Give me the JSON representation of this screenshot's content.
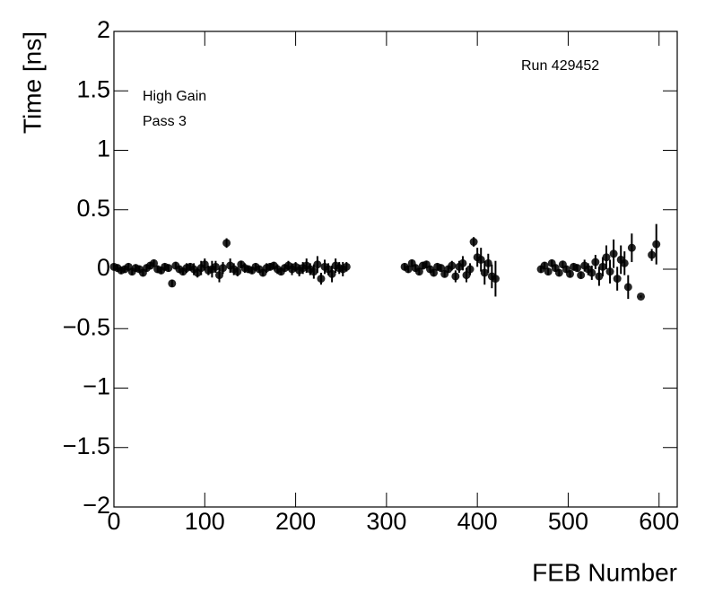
{
  "chart_data": {
    "type": "scatter",
    "xlabel": "FEB Number",
    "ylabel": "Time [ns]",
    "annotations": [
      "High Gain",
      "Pass 3",
      "Run 429452"
    ],
    "xlim": [
      0,
      620
    ],
    "ylim": [
      -2,
      2
    ],
    "xticks": [
      0,
      100,
      200,
      300,
      400,
      500,
      600
    ],
    "yticks": [
      {
        "value": -2,
        "label": "−2"
      },
      {
        "value": -1.5,
        "label": "−1.5"
      },
      {
        "value": -1,
        "label": "−1"
      },
      {
        "value": -0.5,
        "label": "−0.5"
      },
      0,
      0.5,
      1,
      1.5,
      2
    ],
    "series": [
      {
        "color": "#000000",
        "x": [
          0,
          4,
          8,
          12,
          16,
          20,
          24,
          28,
          32,
          36,
          40,
          44,
          48,
          52,
          56,
          60,
          64,
          68,
          72,
          76,
          80,
          84,
          88,
          92,
          96,
          100,
          104,
          108,
          112,
          116,
          120,
          124,
          128,
          132,
          136,
          140,
          144,
          148,
          152,
          156,
          160,
          164,
          168,
          172,
          176,
          180,
          184,
          188,
          192,
          196,
          200,
          204,
          208,
          212,
          216,
          220,
          224,
          228,
          232,
          236,
          240,
          244,
          248,
          252,
          256,
          320,
          324,
          328,
          332,
          336,
          340,
          344,
          348,
          352,
          356,
          360,
          364,
          368,
          372,
          376,
          380,
          384,
          388,
          392,
          396,
          400,
          404,
          408,
          412,
          416,
          420,
          470,
          474,
          478,
          482,
          486,
          490,
          494,
          498,
          502,
          506,
          510,
          514,
          518,
          522,
          526,
          530,
          534,
          538,
          542,
          546,
          550,
          554,
          558,
          562,
          566,
          570,
          580,
          592,
          597
        ],
        "values": [
          0.02,
          0.01,
          -0.01,
          0.0,
          0.02,
          -0.02,
          0.01,
          0.0,
          -0.03,
          0.01,
          0.03,
          0.05,
          0.0,
          -0.01,
          0.02,
          0.01,
          -0.12,
          0.03,
          0.0,
          -0.02,
          0.01,
          0.02,
          0.0,
          -0.03,
          0.01,
          0.04,
          -0.01,
          0.0,
          0.02,
          -0.05,
          0.01,
          0.22,
          0.03,
          0.0,
          -0.02,
          0.04,
          0.01,
          0.0,
          -0.01,
          0.02,
          0.0,
          -0.03,
          0.01,
          0.02,
          0.03,
          0.0,
          -0.02,
          0.01,
          0.03,
          0.0,
          0.02,
          -0.01,
          0.01,
          0.03,
          0.0,
          -0.02,
          0.04,
          -0.08,
          0.02,
          0.0,
          -0.04,
          0.03,
          0.01,
          0.0,
          0.02,
          0.02,
          0.0,
          0.05,
          0.01,
          -0.02,
          0.03,
          0.04,
          0.0,
          -0.03,
          0.02,
          0.01,
          -0.04,
          0.0,
          0.03,
          -0.06,
          0.02,
          0.05,
          -0.05,
          0.0,
          0.23,
          0.1,
          0.08,
          -0.03,
          0.05,
          -0.06,
          -0.08,
          0.0,
          0.03,
          -0.02,
          0.05,
          0.01,
          -0.03,
          0.04,
          0.0,
          -0.04,
          0.02,
          0.01,
          -0.05,
          0.03,
          0.0,
          -0.03,
          0.06,
          -0.06,
          0.02,
          0.1,
          -0.02,
          0.13,
          -0.08,
          0.08,
          0.05,
          -0.15,
          0.18,
          -0.23,
          0.12,
          0.21
        ],
        "errors": [
          0.03,
          0.03,
          0.03,
          0.03,
          0.03,
          0.03,
          0.03,
          0.03,
          0.03,
          0.03,
          0.03,
          0.03,
          0.03,
          0.03,
          0.03,
          0.03,
          0.03,
          0.03,
          0.03,
          0.03,
          0.04,
          0.03,
          0.05,
          0.04,
          0.06,
          0.05,
          0.04,
          0.07,
          0.05,
          0.06,
          0.05,
          0.04,
          0.06,
          0.05,
          0.04,
          0.03,
          0.04,
          0.03,
          0.03,
          0.03,
          0.03,
          0.03,
          0.04,
          0.03,
          0.03,
          0.04,
          0.03,
          0.03,
          0.04,
          0.05,
          0.04,
          0.05,
          0.05,
          0.06,
          0.05,
          0.06,
          0.07,
          0.05,
          0.06,
          0.05,
          0.07,
          0.06,
          0.05,
          0.06,
          0.04,
          0.03,
          0.03,
          0.03,
          0.03,
          0.03,
          0.03,
          0.03,
          0.03,
          0.03,
          0.03,
          0.03,
          0.03,
          0.03,
          0.04,
          0.05,
          0.05,
          0.06,
          0.06,
          0.05,
          0.04,
          0.08,
          0.1,
          0.1,
          0.08,
          0.1,
          0.15,
          0.03,
          0.03,
          0.03,
          0.03,
          0.03,
          0.03,
          0.03,
          0.03,
          0.03,
          0.03,
          0.03,
          0.03,
          0.05,
          0.05,
          0.06,
          0.06,
          0.08,
          0.08,
          0.1,
          0.1,
          0.12,
          0.1,
          0.12,
          0.1,
          0.1,
          0.12,
          0.01,
          0.05,
          0.17
        ]
      }
    ]
  }
}
